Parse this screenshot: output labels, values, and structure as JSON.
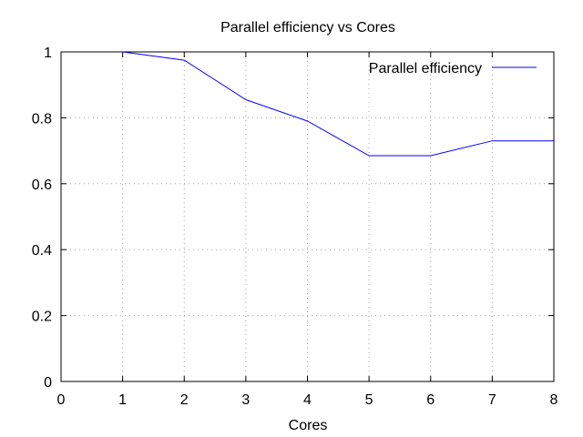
{
  "chart_data": {
    "type": "line",
    "title": "Parallel efficiency vs Cores",
    "xlabel": "Cores",
    "ylabel": "",
    "xlim": [
      0,
      8
    ],
    "ylim": [
      0,
      1
    ],
    "xticks": [
      "0",
      "1",
      "2",
      "3",
      "4",
      "5",
      "6",
      "7",
      "8"
    ],
    "xtick_values": [
      0,
      1,
      2,
      3,
      4,
      5,
      6,
      7,
      8
    ],
    "yticks": [
      "0",
      "0.2",
      "0.4",
      "0.6",
      "0.8",
      "1"
    ],
    "ytick_values": [
      0,
      0.2,
      0.4,
      0.6,
      0.8,
      1
    ],
    "grid": true,
    "legend_position": "top-right",
    "series": [
      {
        "name": "Parallel efficiency",
        "color": "#0000ff",
        "x": [
          1,
          2,
          3,
          4,
          5,
          6,
          7,
          8
        ],
        "y": [
          1.0,
          0.975,
          0.855,
          0.79,
          0.685,
          0.685,
          0.73,
          0.73
        ]
      }
    ]
  }
}
